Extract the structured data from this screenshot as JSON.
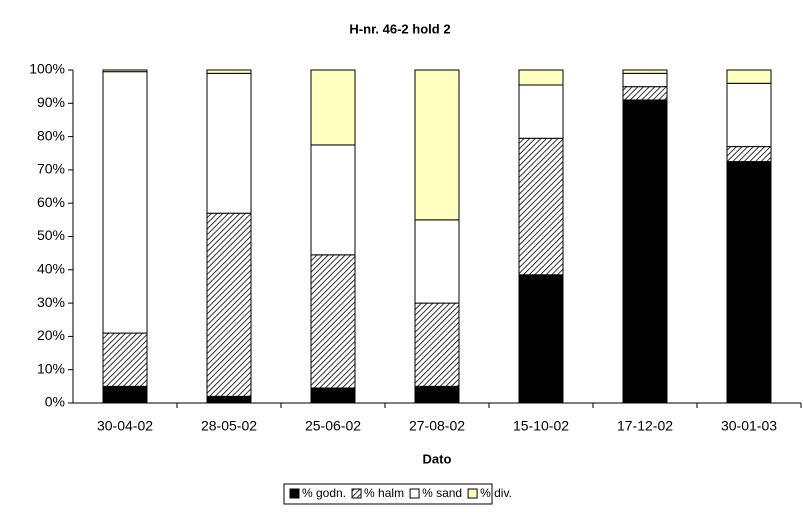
{
  "chart_data": {
    "type": "stacked_bar",
    "title": "H-nr. 46-2 hold 2",
    "x_label": "Dato",
    "categories": [
      "30-04-02",
      "28-05-02",
      "25-06-02",
      "27-08-02",
      "15-10-02",
      "17-12-02",
      "30-01-03"
    ],
    "series": [
      {
        "name": "% godn.",
        "color": "#000000",
        "values": [
          5,
          2,
          4.5,
          5,
          38.5,
          91,
          72.5
        ]
      },
      {
        "name": "% halm",
        "color": "#000000",
        "pattern": "diagonal",
        "values": [
          16,
          55,
          40,
          25,
          41,
          4,
          4.5
        ]
      },
      {
        "name": "% sand",
        "color": "#ffffff",
        "values": [
          78.5,
          42,
          33,
          25,
          16,
          4,
          19
        ]
      },
      {
        "name": "% div.",
        "color": "#ffffc0",
        "values": [
          0.5,
          1,
          22.5,
          45,
          4.5,
          1,
          4
        ]
      }
    ],
    "ylim": [
      0,
      100
    ],
    "yticks": [
      {
        "value": 0,
        "label": "0%"
      },
      {
        "value": 10,
        "label": "10%"
      },
      {
        "value": 20,
        "label": "20%"
      },
      {
        "value": 30,
        "label": "30%"
      },
      {
        "value": 40,
        "label": "40%"
      },
      {
        "value": 50,
        "label": "50%"
      },
      {
        "value": 60,
        "label": "60%"
      },
      {
        "value": 70,
        "label": "70%"
      },
      {
        "value": 80,
        "label": "80%"
      },
      {
        "value": 90,
        "label": "90%"
      },
      {
        "value": 100,
        "label": "100%"
      }
    ],
    "legend": "bottom"
  }
}
